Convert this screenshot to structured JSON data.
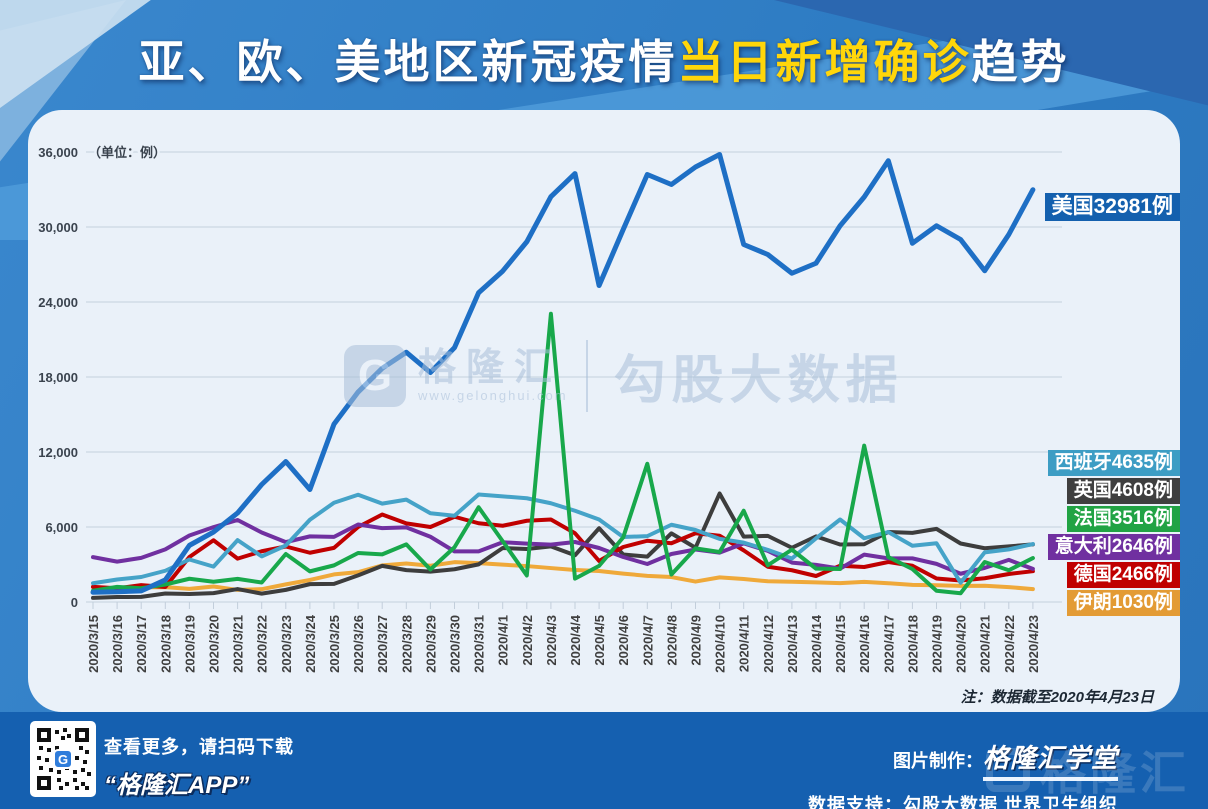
{
  "title": {
    "part1": "亚、欧、美地区新冠疫情",
    "part2": "当日新增确诊",
    "part3": "趋势"
  },
  "panel_note": "注：数据截至2020年4月23日",
  "watermark": {
    "logo_letter": "G",
    "brand": "格隆汇",
    "url": "www.gelonghui.com",
    "partner": "勾股大数据"
  },
  "corner_watermark": {
    "logo_letter": "",
    "brand": "格隆汇"
  },
  "footer": {
    "scan_line1": "查看更多，请扫码下载",
    "scan_line2": "“格隆汇APP”",
    "credit_label": "图片制作：",
    "credit_logo": "格隆汇学堂",
    "support_line": "数据支持：勾股大数据  世界卫生组织",
    "qr_center_letter": "G"
  },
  "chart_data": {
    "type": "line",
    "unit_label": "（单位：例）",
    "grid": "horizontal",
    "legend_position": "right-overlay",
    "y_axis": {
      "min": 0,
      "max": 36000,
      "step": 6000,
      "tick_labels": [
        "0",
        "6,000",
        "12,000",
        "18,000",
        "24,000",
        "30,000",
        "36,000"
      ]
    },
    "x": [
      "2020/3/15",
      "2020/3/16",
      "2020/3/17",
      "2020/3/18",
      "2020/3/19",
      "2020/3/20",
      "2020/3/21",
      "2020/3/22",
      "2020/3/23",
      "2020/3/24",
      "2020/3/25",
      "2020/3/26",
      "2020/3/27",
      "2020/3/28",
      "2020/3/29",
      "2020/3/30",
      "2020/3/31",
      "2020/4/1",
      "2020/4/2",
      "2020/4/3",
      "2020/4/4",
      "2020/4/5",
      "2020/4/6",
      "2020/4/7",
      "2020/4/8",
      "2020/4/9",
      "2020/4/10",
      "2020/4/11",
      "2020/4/12",
      "2020/4/13",
      "2020/4/14",
      "2020/4/15",
      "2020/4/16",
      "2020/4/17",
      "2020/4/18",
      "2020/4/19",
      "2020/4/20",
      "2020/4/21",
      "2020/4/22",
      "2020/4/23"
    ],
    "series": [
      {
        "key": "iran",
        "name": "伊朗",
        "label": "伊朗1030例",
        "final_value": 1030,
        "color": "#efa93a",
        "label_bg": "#e39b35",
        "values": [
          1209,
          1053,
          1178,
          1192,
          1046,
          1237,
          966,
          1028,
          1411,
          1762,
          2206,
          2389,
          2926,
          3076,
          2901,
          3186,
          3110,
          2988,
          2875,
          2715,
          2560,
          2483,
          2274,
          2089,
          1997,
          1634,
          1972,
          1837,
          1657,
          1617,
          1574,
          1512,
          1606,
          1499,
          1374,
          1343,
          1294,
          1297,
          1194,
          1030
        ]
      },
      {
        "key": "uk",
        "name": "英国",
        "label": "英国4608例",
        "final_value": 4608,
        "color": "#3d3d3d",
        "label_bg": "#3f3f3f",
        "values": [
          330,
          400,
          410,
          680,
          640,
          710,
          1035,
          670,
          970,
          1430,
          1450,
          2130,
          2890,
          2550,
          2430,
          2620,
          3010,
          4320,
          4240,
          4450,
          3740,
          5900,
          3800,
          3630,
          5490,
          4340,
          8680,
          5230,
          5290,
          4340,
          5250,
          4600,
          4620,
          5600,
          5530,
          5850,
          4680,
          4300,
          4450,
          4608
        ]
      },
      {
        "key": "germany",
        "name": "德国",
        "label": "德国2466例",
        "final_value": 2466,
        "color": "#c00000",
        "label_bg": "#c00000",
        "values": [
          1210,
          1100,
          1350,
          1200,
          3600,
          4940,
          3470,
          4060,
          4440,
          3940,
          4330,
          6000,
          7000,
          6290,
          6000,
          6820,
          6300,
          6100,
          6500,
          6600,
          5500,
          3280,
          4400,
          4900,
          4700,
          5500,
          5300,
          4130,
          2820,
          2540,
          2080,
          2900,
          2800,
          3200,
          2900,
          1880,
          1720,
          1900,
          2240,
          2466
        ]
      },
      {
        "key": "italy",
        "name": "意大利",
        "label": "意大利2646例",
        "final_value": 2646,
        "color": "#7030a0",
        "label_bg": "#7030a0",
        "values": [
          3590,
          3230,
          3530,
          4210,
          5320,
          5990,
          6560,
          5560,
          4790,
          5250,
          5210,
          6200,
          5910,
          5970,
          5220,
          4050,
          4050,
          4780,
          4670,
          4590,
          4800,
          4320,
          3600,
          3040,
          3840,
          4200,
          3950,
          4690,
          4090,
          3150,
          2970,
          2670,
          3790,
          3490,
          3490,
          3050,
          2260,
          2730,
          3370,
          2646
        ]
      },
      {
        "key": "spain",
        "name": "西班牙",
        "label": "西班牙4635例",
        "final_value": 4635,
        "color": "#45a3c8",
        "label_bg": "#3d9dc4",
        "values": [
          1500,
          1800,
          2000,
          2500,
          3400,
          2830,
          4950,
          3650,
          4520,
          6580,
          7940,
          8580,
          7870,
          8190,
          7100,
          6900,
          8600,
          8450,
          8300,
          7900,
          7300,
          6600,
          5200,
          5270,
          6180,
          5760,
          5050,
          4750,
          4170,
          3480,
          5090,
          6600,
          5100,
          5600,
          4500,
          4700,
          1540,
          3970,
          4210,
          4635
        ]
      },
      {
        "key": "france",
        "name": "法国",
        "label": "法国3516例",
        "final_value": 3516,
        "color": "#18a84b",
        "label_bg": "#21a344",
        "values": [
          900,
          1210,
          1100,
          1400,
          1860,
          1620,
          1850,
          1560,
          3840,
          2450,
          2930,
          3920,
          3810,
          4610,
          2600,
          4380,
          7580,
          4860,
          2120,
          23060,
          1870,
          2890,
          5170,
          11060,
          2200,
          4290,
          4000,
          7300,
          2940,
          4190,
          2670,
          2640,
          12510,
          3600,
          2640,
          900,
          700,
          3200,
          2540,
          3516
        ]
      },
      {
        "key": "us",
        "name": "美国",
        "label": "美国32981例",
        "final_value": 32981,
        "color": "#1e6fc5",
        "label_bg": "#1460ae",
        "values": [
          777,
          823,
          887,
          1766,
          4530,
          5594,
          7123,
          9400,
          11236,
          9000,
          14226,
          16797,
          18695,
          19979,
          18360,
          20353,
          24742,
          26473,
          28819,
          32425,
          34272,
          25316,
          29800,
          34200,
          33400,
          34800,
          35800,
          28600,
          27800,
          26300,
          27100,
          30100,
          32400,
          35300,
          28700,
          30100,
          29000,
          26500,
          29400,
          32981
        ]
      }
    ]
  }
}
